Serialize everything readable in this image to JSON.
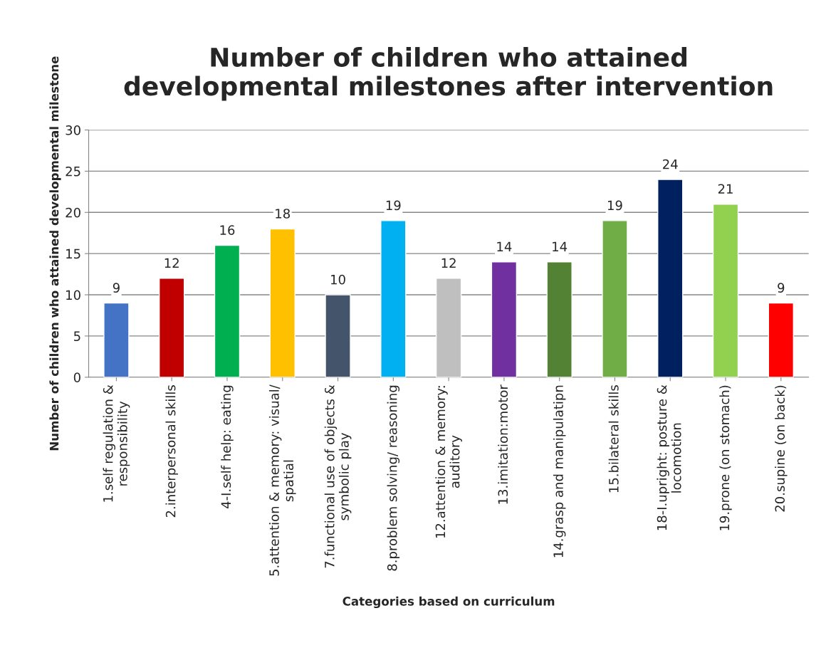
{
  "chart_data": {
    "type": "bar",
    "title": "Number of children who attained\ndevelopmental milestones after intervention",
    "xlabel": "Categories based on curriculum",
    "ylabel": "Number of children who attained developmental milestone",
    "categories": [
      "1.self regulation &\nresponsibility",
      "2.interpersonal skills",
      "4-I.self help: eating",
      "5.attention & memory: visual/\nspatial",
      "7.functional use of objects &\nsymbolic play",
      "8.problem solving/ reasoning",
      "12.attention & memory:\nauditory",
      "13.imitation:motor",
      "14.grasp and manipulatipn",
      "15.bilateral skills",
      "18-I.upright: posture &\nlocomotion",
      "19.prone (on stomach)",
      "20.supine (on back)"
    ],
    "values": [
      9,
      12,
      16,
      18,
      10,
      19,
      12,
      14,
      14,
      19,
      24,
      21,
      9
    ],
    "colors": [
      "#4472c4",
      "#c00000",
      "#00b050",
      "#ffc000",
      "#44546a",
      "#00b0f0",
      "#bfbfbf",
      "#7030a0",
      "#548235",
      "#70ad47",
      "#002060",
      "#92d050",
      "#ff0000"
    ],
    "ylim": [
      0,
      30
    ],
    "yticks": [
      0,
      5,
      10,
      15,
      20,
      25,
      30
    ],
    "grid": "y",
    "data_labels": true
  }
}
